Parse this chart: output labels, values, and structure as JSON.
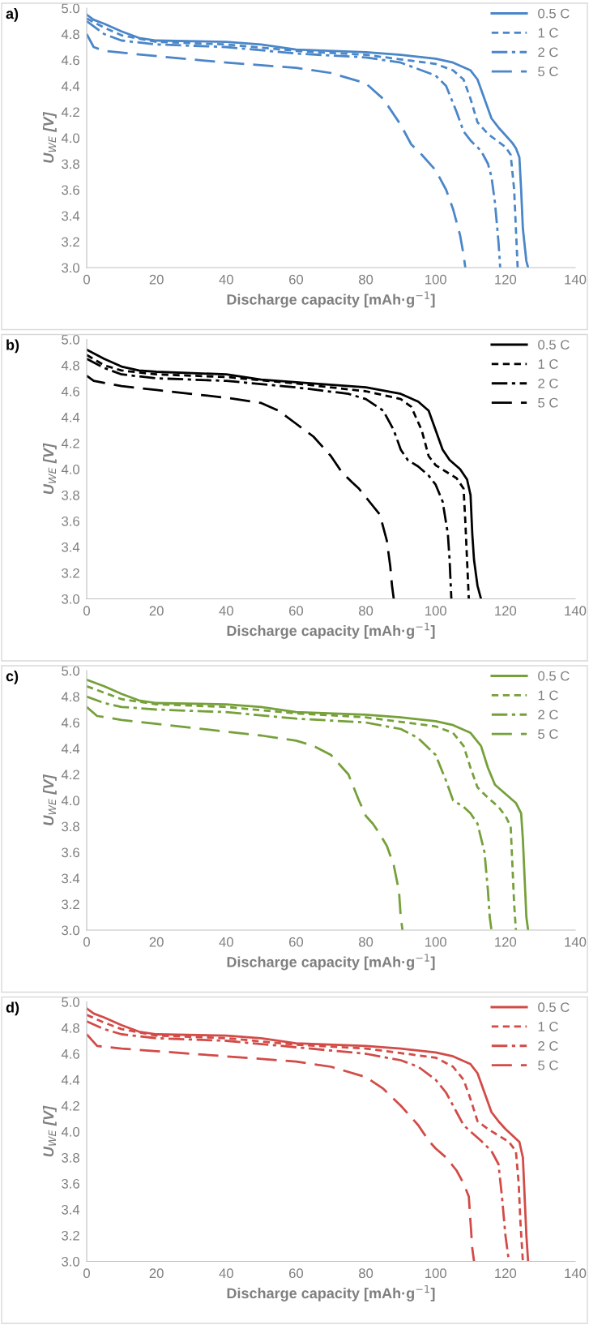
{
  "chart_data": [
    {
      "type": "line",
      "title": "a)",
      "xlabel": "Discharge capacity [mAh·g$^{−1}$]",
      "ylabel": "U$_{WE}$ [V]",
      "xlim": [
        0,
        140
      ],
      "xticks": [
        0,
        20,
        40,
        60,
        80,
        100,
        120,
        140
      ],
      "ylim": [
        3.0,
        5.0
      ],
      "yticks": [
        {
          "value": 3.0,
          "label": "3.0"
        },
        {
          "value": 3.2,
          "label": "3.2"
        },
        {
          "value": 3.4,
          "label": "3.4"
        },
        {
          "value": 3.6,
          "label": "3.6"
        },
        {
          "value": 3.8,
          "label": "3.8"
        },
        {
          "value": 4.0,
          "label": "4.0"
        },
        {
          "value": 4.2,
          "label": "4.2"
        },
        {
          "value": 4.4,
          "label": "4.4"
        },
        {
          "value": 4.6,
          "label": "4.6"
        },
        {
          "value": 4.8,
          "label": "4.8"
        },
        {
          "value": 5.0,
          "label": "5.0"
        }
      ],
      "grid": false,
      "legend": "top right",
      "marker": "none",
      "series": [
        {
          "name": "0.5 C",
          "color": "#4a86c8",
          "line_style": "solid",
          "x": [
            0,
            2,
            5,
            10,
            15,
            20,
            40,
            50,
            60,
            80,
            90,
            100,
            105,
            110,
            112,
            114,
            116,
            118,
            120,
            122,
            123,
            124,
            124.5,
            125,
            126,
            126.5
          ],
          "values": [
            4.95,
            4.91,
            4.88,
            4.82,
            4.77,
            4.75,
            4.74,
            4.72,
            4.68,
            4.66,
            4.64,
            4.61,
            4.58,
            4.52,
            4.45,
            4.3,
            4.15,
            4.08,
            4.02,
            3.96,
            3.92,
            3.85,
            3.6,
            3.3,
            3.05,
            3.0
          ]
        },
        {
          "name": "1 C",
          "color": "#4a86c8",
          "line_style": "dashed",
          "x": [
            0,
            5,
            10,
            20,
            40,
            60,
            80,
            100,
            105,
            108,
            110,
            112,
            115,
            118,
            120,
            121.5,
            122.5,
            123,
            123.5
          ],
          "values": [
            4.92,
            4.85,
            4.79,
            4.74,
            4.72,
            4.67,
            4.64,
            4.57,
            4.52,
            4.45,
            4.3,
            4.12,
            4.03,
            3.97,
            3.93,
            3.87,
            3.6,
            3.3,
            3.0
          ]
        },
        {
          "name": "2 C",
          "color": "#4a86c8",
          "line_style": "dashdot",
          "x": [
            0,
            5,
            10,
            20,
            40,
            60,
            80,
            90,
            100,
            103,
            106,
            108,
            110,
            113,
            115,
            116,
            117,
            118,
            118.5
          ],
          "values": [
            4.9,
            4.8,
            4.75,
            4.72,
            4.7,
            4.65,
            4.62,
            4.58,
            4.48,
            4.4,
            4.2,
            4.05,
            3.98,
            3.9,
            3.8,
            3.7,
            3.5,
            3.2,
            3.0
          ]
        },
        {
          "name": "5 C",
          "color": "#4a86c8",
          "line_style": "longdash",
          "x": [
            0,
            2,
            5,
            20,
            40,
            60,
            70,
            80,
            85,
            90,
            93,
            96,
            100,
            103,
            105,
            107,
            108,
            108.5
          ],
          "values": [
            4.8,
            4.7,
            4.67,
            4.63,
            4.58,
            4.54,
            4.5,
            4.42,
            4.3,
            4.1,
            3.95,
            3.87,
            3.75,
            3.6,
            3.45,
            3.25,
            3.1,
            3.0
          ]
        }
      ]
    },
    {
      "type": "line",
      "title": "b)",
      "xlabel": "Discharge capacity [mAh·g$^{−1}$]",
      "ylabel": "U$_{WE}$ [V]",
      "xlim": [
        0,
        140
      ],
      "xticks": [
        0,
        20,
        40,
        60,
        80,
        100,
        120,
        140
      ],
      "ylim": [
        3.0,
        5.0
      ],
      "yticks": [
        {
          "value": 3.0,
          "label": "3.0"
        },
        {
          "value": 3.2,
          "label": "3.2"
        },
        {
          "value": 3.4,
          "label": "3.4"
        },
        {
          "value": 3.6,
          "label": "3.6"
        },
        {
          "value": 3.8,
          "label": "3.8"
        },
        {
          "value": 4.0,
          "label": "4.0"
        },
        {
          "value": 4.2,
          "label": "4.2"
        },
        {
          "value": 4.4,
          "label": "4.4"
        },
        {
          "value": 4.6,
          "label": "4.6"
        },
        {
          "value": 4.8,
          "label": "4.8"
        },
        {
          "value": 5.0,
          "label": "5.0"
        }
      ],
      "grid": false,
      "legend": "top right",
      "marker": "none",
      "series": [
        {
          "name": "0.5 C",
          "color": "#000000",
          "line_style": "solid",
          "x": [
            0,
            5,
            10,
            15,
            20,
            40,
            50,
            60,
            80,
            90,
            95,
            98,
            100,
            102,
            104,
            107,
            109,
            110,
            110.5,
            111,
            112,
            113
          ],
          "values": [
            4.92,
            4.85,
            4.79,
            4.76,
            4.75,
            4.73,
            4.69,
            4.67,
            4.63,
            4.58,
            4.52,
            4.45,
            4.3,
            4.15,
            4.07,
            4.0,
            3.92,
            3.8,
            3.5,
            3.3,
            3.1,
            3.0
          ]
        },
        {
          "name": "1 C",
          "color": "#000000",
          "line_style": "dashed",
          "x": [
            0,
            5,
            10,
            20,
            40,
            60,
            80,
            90,
            93,
            96,
            98,
            100,
            103,
            106,
            108,
            108.5,
            109,
            109.5
          ],
          "values": [
            4.88,
            4.8,
            4.76,
            4.73,
            4.71,
            4.66,
            4.6,
            4.54,
            4.48,
            4.3,
            4.1,
            4.03,
            3.98,
            3.93,
            3.85,
            3.6,
            3.3,
            3.0
          ]
        },
        {
          "name": "2 C",
          "color": "#000000",
          "line_style": "dashdot",
          "x": [
            0,
            5,
            10,
            20,
            40,
            60,
            75,
            80,
            85,
            88,
            90,
            92,
            95,
            98,
            100,
            102,
            103.5,
            104,
            104.5
          ],
          "values": [
            4.85,
            4.78,
            4.73,
            4.7,
            4.68,
            4.63,
            4.58,
            4.54,
            4.45,
            4.3,
            4.15,
            4.07,
            4.02,
            3.95,
            3.88,
            3.75,
            3.5,
            3.3,
            3.0
          ]
        },
        {
          "name": "5 C",
          "color": "#000000",
          "line_style": "longdash",
          "x": [
            0,
            2,
            10,
            20,
            40,
            50,
            55,
            60,
            65,
            70,
            73,
            76,
            78,
            81,
            84,
            86,
            87,
            87.5,
            88
          ],
          "values": [
            4.72,
            4.68,
            4.64,
            4.61,
            4.55,
            4.51,
            4.45,
            4.35,
            4.25,
            4.1,
            3.98,
            3.9,
            3.85,
            3.75,
            3.65,
            3.45,
            3.25,
            3.1,
            3.0
          ]
        }
      ]
    },
    {
      "type": "line",
      "title": "c)",
      "xlabel": "Discharge capacity [mAh·g$^{−1}$]",
      "ylabel": "U$_{WE}$ [V]",
      "xlim": [
        0,
        140
      ],
      "xticks": [
        0,
        20,
        40,
        60,
        80,
        100,
        120,
        140
      ],
      "ylim": [
        3.0,
        5.0
      ],
      "yticks": [
        {
          "value": 3.0,
          "label": "3.0"
        },
        {
          "value": 3.2,
          "label": "3.2"
        },
        {
          "value": 3.4,
          "label": "3.4"
        },
        {
          "value": 3.6,
          "label": "3.6"
        },
        {
          "value": 3.8,
          "label": "3.8"
        },
        {
          "value": 4.0,
          "label": "4.0"
        },
        {
          "value": 4.2,
          "label": "4.2"
        },
        {
          "value": 4.4,
          "label": "4.4"
        },
        {
          "value": 4.6,
          "label": "4.6"
        },
        {
          "value": 4.8,
          "label": "4.8"
        },
        {
          "value": 5.0,
          "label": "5.0"
        }
      ],
      "grid": false,
      "legend": "top right",
      "marker": "none",
      "series": [
        {
          "name": "0.5 C",
          "color": "#76a03a",
          "line_style": "solid",
          "x": [
            0,
            5,
            10,
            15,
            20,
            40,
            50,
            60,
            80,
            90,
            100,
            105,
            110,
            113,
            115,
            117,
            120,
            123,
            124.5,
            125,
            125.5,
            126,
            126.5
          ],
          "values": [
            4.93,
            4.88,
            4.82,
            4.77,
            4.75,
            4.74,
            4.72,
            4.68,
            4.66,
            4.64,
            4.61,
            4.58,
            4.52,
            4.42,
            4.25,
            4.12,
            4.05,
            3.98,
            3.9,
            3.7,
            3.4,
            3.1,
            3.0
          ]
        },
        {
          "name": "1 C",
          "color": "#76a03a",
          "line_style": "dashed",
          "x": [
            0,
            5,
            10,
            20,
            40,
            60,
            80,
            100,
            105,
            108,
            110,
            112,
            115,
            118,
            120,
            121.5,
            122,
            122.5,
            123
          ],
          "values": [
            4.88,
            4.83,
            4.78,
            4.74,
            4.72,
            4.67,
            4.64,
            4.57,
            4.52,
            4.42,
            4.25,
            4.1,
            4.02,
            3.95,
            3.88,
            3.8,
            3.5,
            3.2,
            3.0
          ]
        },
        {
          "name": "2 C",
          "color": "#76a03a",
          "line_style": "dashdot",
          "x": [
            0,
            5,
            10,
            20,
            40,
            60,
            80,
            90,
            95,
            100,
            103,
            105,
            108,
            110,
            112,
            114,
            115,
            115.5,
            116
          ],
          "values": [
            4.8,
            4.75,
            4.72,
            4.7,
            4.68,
            4.63,
            4.6,
            4.55,
            4.48,
            4.35,
            4.15,
            4.0,
            3.95,
            3.9,
            3.82,
            3.6,
            3.3,
            3.1,
            3.0
          ]
        },
        {
          "name": "5 C",
          "color": "#76a03a",
          "line_style": "longdash",
          "x": [
            0,
            3,
            10,
            20,
            40,
            50,
            60,
            65,
            70,
            75,
            78,
            80,
            82,
            84,
            86,
            88,
            89.5,
            90,
            90.5
          ],
          "values": [
            4.72,
            4.65,
            4.62,
            4.59,
            4.53,
            4.5,
            4.46,
            4.42,
            4.35,
            4.2,
            4.0,
            3.88,
            3.82,
            3.74,
            3.65,
            3.5,
            3.3,
            3.1,
            3.0
          ]
        }
      ]
    },
    {
      "type": "line",
      "title": "d)",
      "xlabel": "Discharge capacity [mAh·g$^{−1}$]",
      "ylabel": "U$_{WE}$ [V]",
      "xlim": [
        0,
        140
      ],
      "xticks": [
        0,
        20,
        40,
        60,
        80,
        100,
        120,
        140
      ],
      "ylim": [
        3.0,
        5.0
      ],
      "yticks": [
        {
          "value": 3.0,
          "label": "3.0"
        },
        {
          "value": 3.2,
          "label": "3.2"
        },
        {
          "value": 3.4,
          "label": "3.4"
        },
        {
          "value": 3.6,
          "label": "3.6"
        },
        {
          "value": 3.8,
          "label": "3.8"
        },
        {
          "value": 4.0,
          "label": "4.0"
        },
        {
          "value": 4.2,
          "label": "4.2"
        },
        {
          "value": 4.4,
          "label": "4.4"
        },
        {
          "value": 4.6,
          "label": "4.6"
        },
        {
          "value": 4.8,
          "label": "4.8"
        },
        {
          "value": 5.0,
          "label": "5.0"
        }
      ],
      "grid": false,
      "legend": "top right",
      "marker": "none",
      "series": [
        {
          "name": "0.5 C",
          "color": "#d24b47",
          "line_style": "solid",
          "x": [
            0,
            2,
            5,
            10,
            15,
            20,
            40,
            50,
            60,
            80,
            90,
            100,
            105,
            110,
            112,
            114,
            116,
            118,
            120,
            122,
            124,
            125,
            125.5,
            126,
            126.5
          ],
          "values": [
            4.95,
            4.91,
            4.88,
            4.82,
            4.77,
            4.75,
            4.74,
            4.72,
            4.68,
            4.66,
            4.64,
            4.61,
            4.58,
            4.52,
            4.45,
            4.3,
            4.15,
            4.08,
            4.02,
            3.97,
            3.92,
            3.8,
            3.5,
            3.2,
            3.0
          ]
        },
        {
          "name": "1 C",
          "color": "#d24b47",
          "line_style": "dashed",
          "x": [
            0,
            5,
            10,
            20,
            40,
            60,
            80,
            100,
            105,
            108,
            110,
            112,
            115,
            118,
            121,
            123,
            123.8,
            124.3,
            125
          ],
          "values": [
            4.9,
            4.84,
            4.79,
            4.74,
            4.72,
            4.67,
            4.64,
            4.57,
            4.5,
            4.4,
            4.25,
            4.08,
            4.02,
            3.97,
            3.92,
            3.85,
            3.6,
            3.3,
            3.0
          ]
        },
        {
          "name": "2 C",
          "color": "#d24b47",
          "line_style": "dashdot",
          "x": [
            0,
            5,
            10,
            20,
            40,
            60,
            80,
            90,
            95,
            100,
            103,
            106,
            108,
            110,
            113,
            116,
            118,
            119,
            120,
            121
          ],
          "values": [
            4.85,
            4.79,
            4.75,
            4.72,
            4.7,
            4.65,
            4.6,
            4.55,
            4.5,
            4.4,
            4.3,
            4.15,
            4.05,
            4.0,
            3.93,
            3.85,
            3.75,
            3.5,
            3.2,
            3.0
          ]
        },
        {
          "name": "5 C",
          "color": "#d24b47",
          "line_style": "longdash",
          "x": [
            0,
            3,
            10,
            20,
            40,
            60,
            70,
            80,
            85,
            90,
            95,
            98,
            100,
            103,
            106,
            108,
            109.5,
            110,
            110.5,
            111
          ],
          "values": [
            4.75,
            4.66,
            4.64,
            4.62,
            4.58,
            4.54,
            4.5,
            4.42,
            4.33,
            4.2,
            4.05,
            3.93,
            3.87,
            3.8,
            3.7,
            3.6,
            3.5,
            3.3,
            3.1,
            3.0
          ]
        }
      ]
    }
  ]
}
